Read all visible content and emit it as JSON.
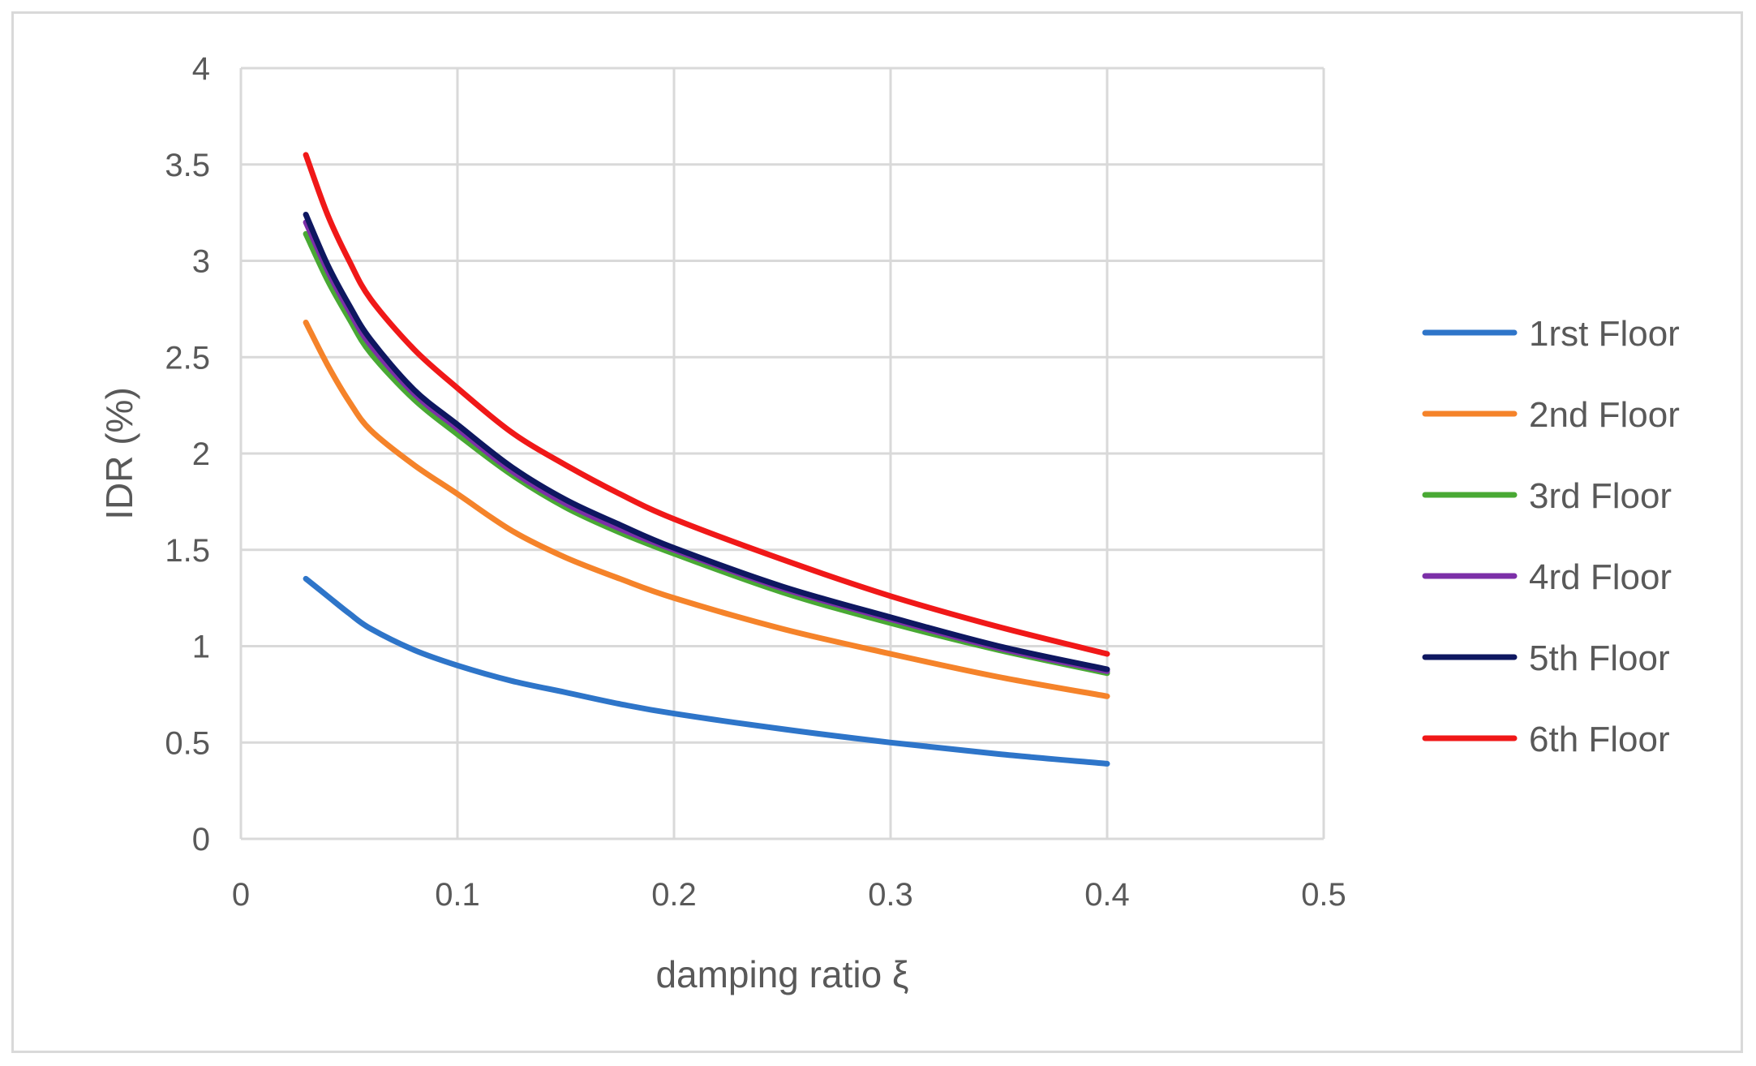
{
  "chart_data": {
    "type": "line",
    "title": "",
    "xlabel": "damping ratio ξ",
    "ylabel": "IDR (%)",
    "xlim": [
      0,
      0.5
    ],
    "ylim": [
      0,
      4
    ],
    "xticks": [
      0,
      0.1,
      0.2,
      0.3,
      0.4,
      0.5
    ],
    "yticks": [
      0,
      0.5,
      1,
      1.5,
      2,
      2.5,
      3,
      3.5,
      4
    ],
    "xtick_labels": [
      "0",
      "0.1",
      "0.2",
      "0.3",
      "0.4",
      "0.5"
    ],
    "ytick_labels": [
      "0",
      "0.5",
      "1",
      "1.5",
      "2",
      "2.5",
      "3",
      "3.5",
      "4"
    ],
    "grid": true,
    "legend_position": "right",
    "x": [
      0.03,
      0.04,
      0.05,
      0.06,
      0.08,
      0.1,
      0.125,
      0.15,
      0.175,
      0.2,
      0.25,
      0.3,
      0.35,
      0.4
    ],
    "series": [
      {
        "name": "1rst Floor",
        "color": "#2e75c9",
        "values": [
          1.35,
          1.26,
          1.17,
          1.09,
          0.98,
          0.9,
          0.82,
          0.76,
          0.7,
          0.65,
          0.57,
          0.5,
          0.44,
          0.39
        ]
      },
      {
        "name": "2nd Floor",
        "color": "#f5832a",
        "values": [
          2.68,
          2.46,
          2.27,
          2.12,
          1.94,
          1.79,
          1.6,
          1.46,
          1.35,
          1.25,
          1.09,
          0.96,
          0.84,
          0.74
        ]
      },
      {
        "name": "3rd Floor",
        "color": "#49a934",
        "values": [
          3.14,
          2.9,
          2.7,
          2.52,
          2.28,
          2.1,
          1.89,
          1.72,
          1.59,
          1.48,
          1.28,
          1.12,
          0.98,
          0.86
        ]
      },
      {
        "name": "4rd Floor",
        "color": "#7c2fa8",
        "values": [
          3.2,
          2.95,
          2.74,
          2.56,
          2.31,
          2.13,
          1.91,
          1.74,
          1.61,
          1.5,
          1.3,
          1.14,
          0.99,
          0.87
        ]
      },
      {
        "name": "5th Floor",
        "color": "#0e1760",
        "values": [
          3.24,
          2.98,
          2.77,
          2.59,
          2.33,
          2.15,
          1.93,
          1.76,
          1.63,
          1.51,
          1.31,
          1.15,
          1.0,
          0.88
        ]
      },
      {
        "name": "6th Floor",
        "color": "#f01818",
        "values": [
          3.55,
          3.24,
          3.0,
          2.8,
          2.54,
          2.34,
          2.11,
          1.94,
          1.79,
          1.66,
          1.45,
          1.26,
          1.1,
          0.96
        ]
      }
    ]
  }
}
